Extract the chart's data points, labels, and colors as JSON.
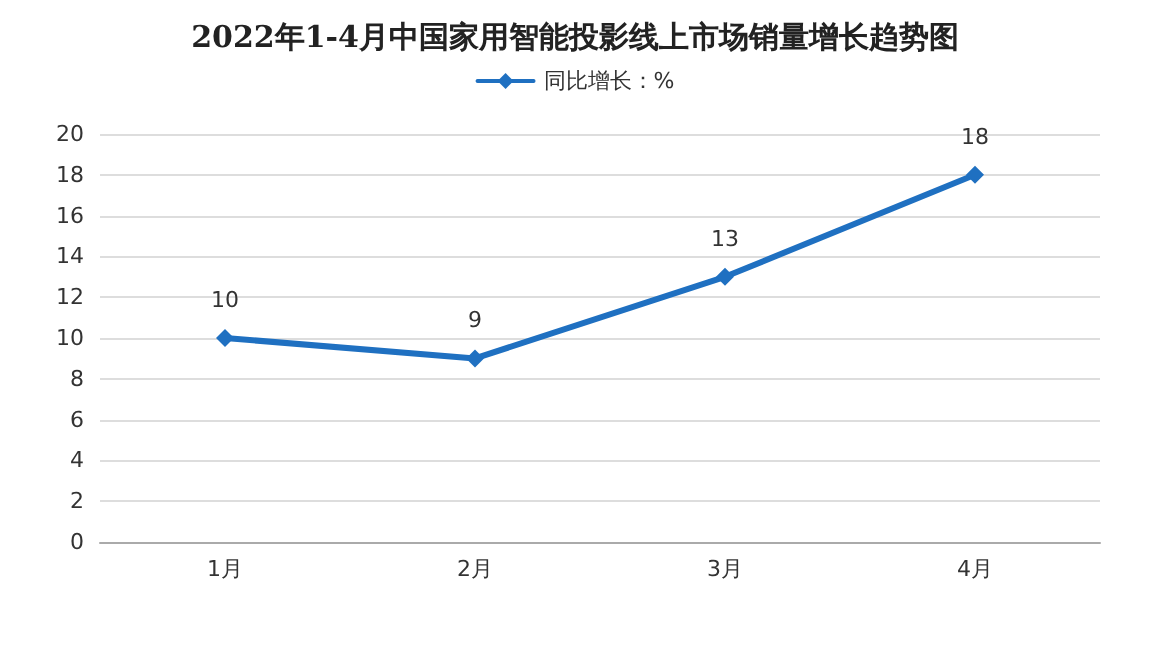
{
  "chart_data": {
    "type": "line",
    "title": "2022年1-4月中国家用智能投影线上市场销量增长趋势图",
    "categories": [
      "1月",
      "2月",
      "3月",
      "4月"
    ],
    "series": [
      {
        "name": "同比增长：%",
        "color": "#1f70c1",
        "values": [
          10,
          9,
          13,
          18
        ]
      }
    ],
    "ylim": [
      0,
      20
    ],
    "yticks": [
      0,
      2,
      4,
      6,
      8,
      10,
      12,
      14,
      16,
      18,
      20
    ],
    "grid": "y",
    "legend": "top",
    "marker": "diamond",
    "line_style": "solid",
    "data_labels": true
  }
}
